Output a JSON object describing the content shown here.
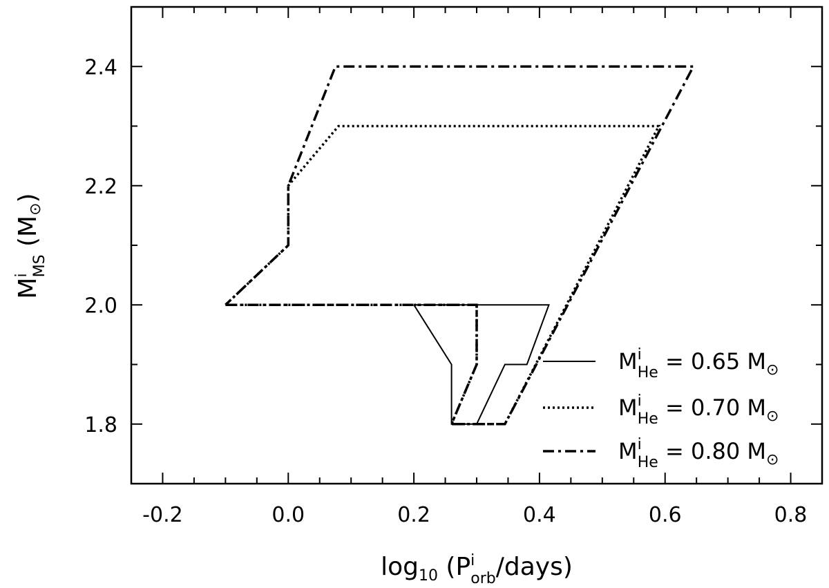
{
  "chart_data": {
    "type": "line",
    "xlabel": {
      "base": "log",
      "sub1": "10",
      "mid": " (P",
      "sup": "i",
      "sub2": "orb",
      "tail": "/days)"
    },
    "ylabel": {
      "base": "M",
      "sup": "i",
      "sub": "MS",
      "tail": " (M",
      "sun": "⊙",
      "close": ")"
    },
    "xlim": [
      -0.25,
      0.85
    ],
    "ylim": [
      1.7,
      2.5
    ],
    "xticks": [
      -0.2,
      0.0,
      0.2,
      0.4,
      0.6,
      0.8
    ],
    "xtick_labels": [
      "-0.2",
      "0.0",
      "0.2",
      "0.4",
      "0.6",
      "0.8"
    ],
    "yticks": [
      1.8,
      2.0,
      2.2,
      2.4
    ],
    "ytick_labels": [
      "1.8",
      "2.0",
      "2.2",
      "2.4"
    ],
    "legend_position": "bottom-right",
    "series": [
      {
        "name": "0.65",
        "style": "solid",
        "x": [
          0.2,
          0.26,
          0.26,
          0.3,
          0.345,
          0.38,
          0.415,
          0.2
        ],
        "y": [
          2.0,
          1.9,
          1.8,
          1.8,
          1.9,
          1.9,
          2.0,
          2.0
        ]
      },
      {
        "name": "0.70",
        "style": "dotted",
        "x": [
          -0.1,
          0.3,
          0.3,
          0.26,
          0.345,
          0.59,
          0.08,
          0.0,
          0.0,
          -0.1
        ],
        "y": [
          2.0,
          2.0,
          1.9,
          1.8,
          1.8,
          2.3,
          2.3,
          2.2,
          2.1,
          2.0
        ]
      },
      {
        "name": "0.80",
        "style": "dashdot",
        "x": [
          -0.1,
          0.3,
          0.3,
          0.26,
          0.345,
          0.645,
          0.075,
          0.0,
          0.0,
          -0.1
        ],
        "y": [
          2.0,
          2.0,
          1.9,
          1.8,
          1.8,
          2.4,
          2.4,
          2.2,
          2.1,
          2.0
        ]
      }
    ],
    "legend_parts": {
      "base": "M",
      "sup": "i",
      "sub": "He",
      "eq": " = ",
      "unit": " M",
      "sun": "⊙"
    }
  }
}
